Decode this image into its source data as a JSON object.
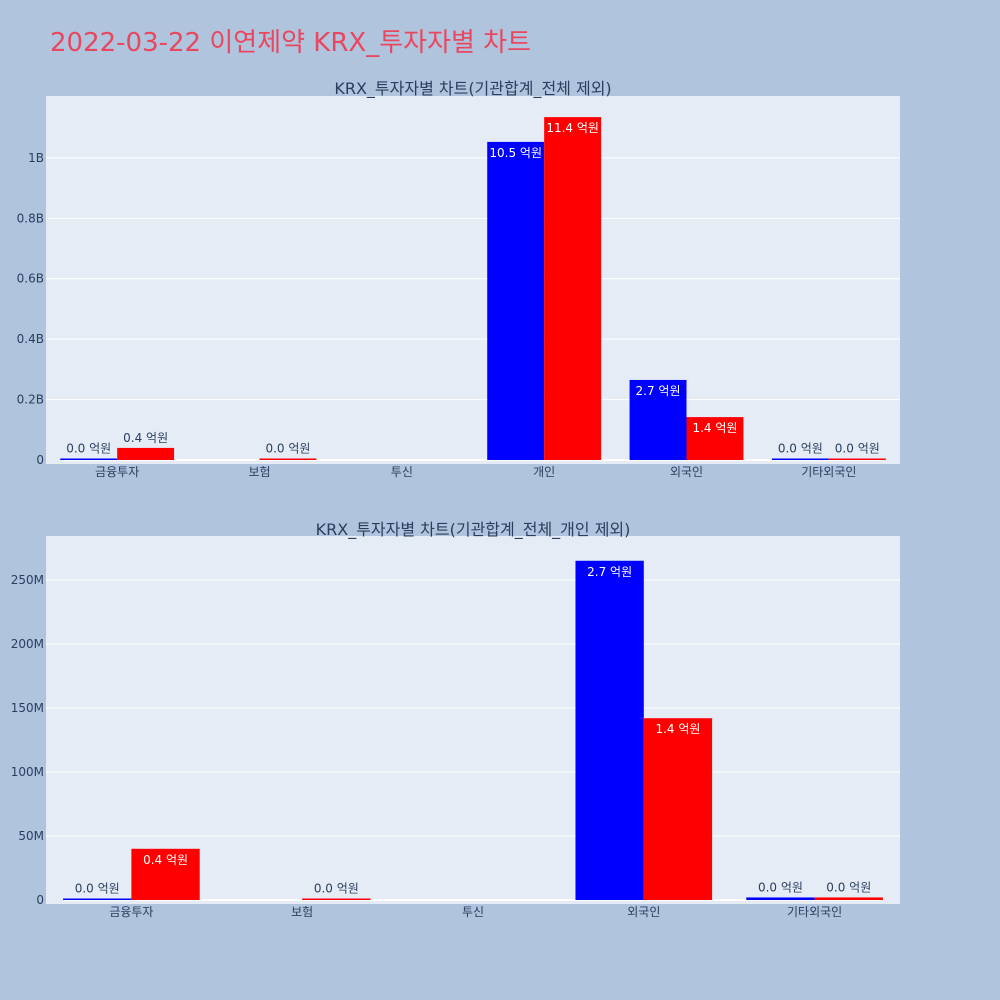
{
  "title": "2022-03-22 이연제약 KRX_투자자별 차트",
  "colors": {
    "series_a": "#0000ff",
    "series_b": "#ff0000",
    "plot_bg": "#e5ecf6",
    "page_bg": "#b0c4de",
    "title": "#e8475f"
  },
  "chart_data": [
    {
      "type": "bar",
      "title": "KRX_투자자별 차트(기관합계_전체 제외)",
      "categories": [
        "금융투자",
        "보험",
        "투신",
        "개인",
        "외국인",
        "기타외국인"
      ],
      "series": [
        {
          "values": [
            1000000,
            0,
            0,
            1053000000,
            265000000,
            2000000
          ],
          "labels": [
            "0.0 억원",
            "",
            "",
            "10.5 억원",
            "2.7 억원",
            "0.0 억원"
          ]
        },
        {
          "values": [
            40000000,
            1000000,
            0,
            1135000000,
            142000000,
            2000000
          ],
          "labels": [
            "0.4 억원",
            "0.0 억원",
            "",
            "11.4 억원",
            "1.4 억원",
            "0.0 억원"
          ]
        }
      ],
      "yticks": [
        0,
        200000000,
        400000000,
        600000000,
        800000000,
        1000000000
      ],
      "ytick_labels": [
        "0",
        "0.2B",
        "0.4B",
        "0.6B",
        "0.8B",
        "1B"
      ],
      "ylim": [
        0,
        1195000000
      ],
      "grid": true
    },
    {
      "type": "bar",
      "title": "KRX_투자자별 차트(기관합계_전체_개인 제외)",
      "categories": [
        "금융투자",
        "보험",
        "투신",
        "외국인",
        "기타외국인"
      ],
      "series": [
        {
          "values": [
            1000000,
            0,
            0,
            265000000,
            2000000
          ],
          "labels": [
            "0.0 억원",
            "",
            "",
            "2.7 억원",
            "0.0 억원"
          ]
        },
        {
          "values": [
            40000000,
            1000000,
            0,
            142000000,
            2000000
          ],
          "labels": [
            "0.4 억원",
            "0.0 억원",
            "",
            "1.4 억원",
            "0.0 억원"
          ]
        }
      ],
      "yticks": [
        0,
        50000000,
        100000000,
        150000000,
        200000000,
        250000000
      ],
      "ytick_labels": [
        "0",
        "50M",
        "100M",
        "150M",
        "200M",
        "250M"
      ],
      "ylim": [
        0,
        282000000
      ],
      "grid": true
    }
  ]
}
